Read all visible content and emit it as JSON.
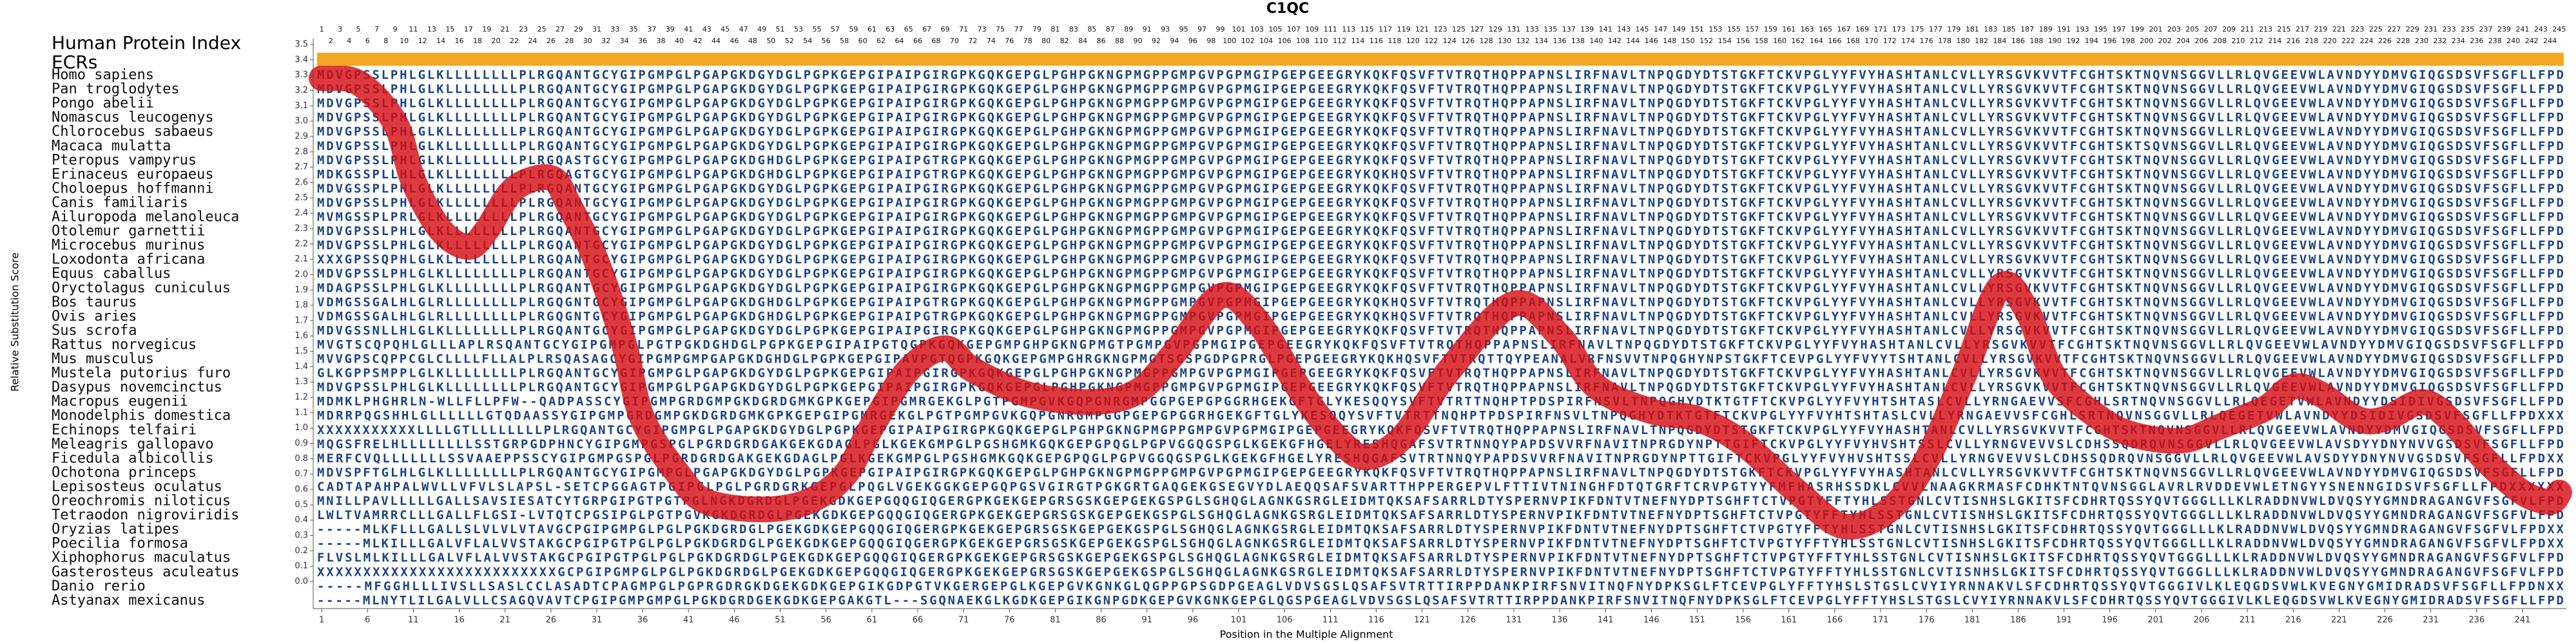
{
  "chart_data": {
    "type": "line",
    "title": "C1QC",
    "ylabel": "Relative Substitution Score",
    "xlabel": "Position in the Multiple Alignment",
    "xlim": [
      0.5,
      245.5
    ],
    "ylim": [
      0,
      3.5
    ],
    "xticks": [
      1,
      6,
      11,
      16,
      21,
      26,
      31,
      36,
      41,
      46,
      51,
      56,
      61,
      66,
      71,
      76,
      81,
      86,
      91,
      96,
      101,
      106,
      111,
      116,
      121,
      126,
      131,
      136,
      141,
      146,
      151,
      156,
      161,
      166,
      171,
      176,
      181,
      186,
      191,
      196,
      201,
      206,
      211,
      216,
      221,
      226,
      231,
      236,
      241
    ],
    "yticks": [
      {
        "value": 0,
        "label": "0.0"
      },
      0.1,
      0.2,
      0.3,
      0.4,
      0.5,
      0.6,
      0.7,
      0.8,
      0.9,
      {
        "value": 1,
        "label": "1.0"
      },
      1.1,
      1.2,
      1.3,
      1.4,
      1.5,
      1.6,
      1.7,
      1.8,
      1.9,
      {
        "value": 2,
        "label": "2.0"
      },
      2.1,
      2.2,
      2.3,
      2.4,
      2.5,
      2.6,
      2.7,
      2.8,
      2.9,
      {
        "value": 3,
        "label": "3.0"
      },
      3.1,
      3.2,
      3.3,
      3.4,
      3.5
    ],
    "x": [
      1,
      5,
      9,
      11,
      14,
      17,
      19,
      22,
      26,
      28,
      31,
      34,
      36,
      40,
      43,
      49,
      54,
      58,
      61,
      65,
      69,
      72,
      78,
      85,
      90,
      94,
      99,
      103,
      108,
      112,
      115,
      119,
      124,
      131,
      136,
      140,
      146,
      151,
      156,
      162,
      167,
      172,
      176,
      180,
      184,
      187,
      190,
      195,
      199,
      204,
      208,
      213,
      216,
      219,
      223,
      226,
      230,
      233,
      237,
      241,
      244,
      245
    ],
    "series": [
      {
        "color": "#d40f14",
        "values": [
          3.28,
          3.25,
          2.99,
          2.61,
          2.29,
          2.18,
          2.29,
          2.56,
          2.63,
          2.45,
          2.08,
          1.54,
          1.06,
          0.69,
          0.52,
          0.47,
          0.52,
          0.69,
          1.01,
          1.38,
          1.52,
          1.38,
          1.22,
          1.17,
          1.24,
          1.49,
          1.86,
          1.7,
          1.22,
          0.92,
          0.81,
          0.95,
          1.38,
          1.81,
          1.6,
          1.27,
          1.11,
          1.06,
          0.9,
          0.58,
          0.36,
          0.47,
          0.79,
          1.33,
          1.92,
          1.76,
          1.33,
          1.06,
          0.95,
          0.92,
          1.01,
          1.13,
          1.27,
          1.22,
          1.06,
          1.06,
          1.17,
          1.06,
          0.79,
          0.58,
          0.52,
          0.58
        ]
      }
    ]
  },
  "human_protein_index": {
    "label": "Human Protein Index",
    "positions": [
      1,
      2,
      3,
      4,
      5,
      6,
      7,
      8,
      9,
      10,
      11,
      12,
      13,
      14,
      15,
      16,
      17,
      18,
      19,
      20,
      21,
      22,
      23,
      24,
      25,
      26,
      27,
      28,
      29,
      30,
      31,
      32,
      33,
      34,
      35,
      36,
      37,
      38,
      39,
      40,
      41,
      42,
      43,
      44,
      45,
      46,
      47,
      48,
      49,
      50,
      51,
      52,
      53,
      54,
      55,
      56,
      57,
      58,
      59,
      60,
      61,
      62,
      63,
      64,
      65,
      66,
      67,
      68,
      69,
      70,
      71,
      72,
      73,
      74,
      75,
      76,
      77,
      78,
      79,
      80,
      81,
      82,
      83,
      84,
      85,
      86,
      87,
      88,
      89,
      90,
      91,
      92,
      93,
      94,
      95,
      96,
      97,
      98,
      99,
      100,
      101,
      102,
      103,
      104,
      105,
      106,
      107,
      108,
      109,
      110,
      111,
      112,
      113,
      114,
      115,
      116,
      117,
      118,
      119,
      120,
      121,
      122,
      123,
      124,
      125,
      126,
      127,
      128,
      129,
      130,
      131,
      132,
      133,
      134,
      135,
      136,
      137,
      138,
      139,
      140,
      141,
      142,
      143,
      144,
      145,
      146,
      147,
      148,
      149,
      150,
      151,
      152,
      153,
      154,
      155,
      156,
      157,
      158,
      159,
      160,
      161,
      162,
      163,
      164,
      165,
      166,
      167,
      168,
      169,
      170,
      171,
      172,
      173,
      174,
      175,
      176,
      177,
      178,
      179,
      180,
      181,
      182,
      183,
      184,
      185,
      186,
      187,
      188,
      189,
      190,
      191,
      192,
      193,
      194,
      195,
      196,
      197,
      198,
      199,
      200,
      201,
      202,
      203,
      204,
      205,
      206,
      207,
      208,
      209,
      210,
      211,
      212,
      213,
      214,
      215,
      216,
      217,
      218,
      219,
      220,
      221,
      222,
      223,
      224,
      225,
      226,
      227,
      228,
      229,
      230,
      231,
      232,
      233,
      234,
      235,
      236,
      237,
      238,
      239,
      240,
      241,
      242,
      243,
      244,
      245
    ]
  },
  "ecrs": {
    "label": "ECRs",
    "color": "#f5a623",
    "ranges": [
      [
        1,
        245
      ]
    ]
  },
  "alignment": [
    {
      "species": "Homo sapiens",
      "sequence": "MDVGPSSLPHLGLKLLLLLLLLPLRGQANTGCYGIPGMPGLPGAPGKDGYDGLPGPKGEPGIPAIPGIRGPKGQKGEPGLPGHPGKNGPMGPPGMPGVPGPMGIPGEPGEEGRYKQKFQSVFTVTRQTHQPPAPNSLIRFNAVLTNPQGDYDTSTGKFTCKVPGLYYFVYHASHTANLCVLLYRSGVKVVTFCGHTSKTNQVNSGGVLLRLQVGEEVWLAVNDYYDMVGIQGSDSVFSGFLLFPD"
    },
    {
      "species": "Pan troglodytes",
      "sequence": "MDVGPSSLPHLGLKLLLLLLLLPLRGQANTGCYGIPGMPGLPGAPGKDGYDGLPGPKGEPGIPAIPGIRGPKGQKGEPGLPGHPGKNGPMGPPGMPGVPGPMGIPGEPGEEGRYKQKFQSVFTVTRQTHQPPAPNSLIRFNAVLTNPQGDYDTSTGKFTCKVPGLYYFVYHASHTANLCVLLYRSGVKVVTFCGHTSKTNQVNSGGVLLRLQVGEEVWLAVNDYYDMVGIQGSDSVFSGFLLFPD"
    },
    {
      "species": "Pongo abelii",
      "sequence": "MDVGPSSLPHLGLKLLLLLLLLPLRGQANTGCYGIPGMPGLPGAPGKDGYDGLPGPKGEPGIPAIPGIRGPKGQKGEPGLPGHPGKNGPMGPPGMPGVPGPMGIPGEPGEEGRYKQKFQSVFTVTRQTHQPPAPNSLIRFNAVLTNPQGDYDTSTGKFTCKVPGLYYFVYHASHTANLCVLLYRSGVKVVTFCGHTSKTNQVNSGGVLLRLQVGEEVWLAVNDYYDMVGIQGSDSVFSGFLLFPD"
    },
    {
      "species": "Nomascus leucogenys",
      "sequence": "MDVGPSSLPHLGLKLLLLLLLLPLRGQANTGCYGIPGMPGLPGAPGKDGYDGLPGPKGEPGIPAIPGIRGPKGQKGEPGLPGHPGKNGPMGPPGMPGVPGPMGIPGEPGEEGRYKQKFQSVFTVTRQTHQPPAPNSLIRFNAVLTNPQGDYDTSTGKFTCKVPGLYYFVYHASHTANLCVLLYRSGVKVVTFCGHTSKTNQVNSGGVLLRLQVGEEVWLAVNDYYDMVGIQGSDSVFSGFLLFPD"
    },
    {
      "species": "Chlorocebus sabaeus",
      "sequence": "MDVGPSSLPHLGLKLLLLLLLLPLRGQANTGCYGIPGMPGLPGAPGKDGYDGLPGPKGEPGIPAIPGIRGPKGQKGEPGLPGHPGKNGPMGPPGMPGVPGPMGIPGEPGEEGRYKQKFQSVFTVTRQTHQPPAPNSLIRFNAVLTNPQGDYDTSTGKFTCKVPGLYYFVYHASHTANLCVLLYRSGVKVVTFCGHTSKTNQVNSGGVLLRLQVGEEVWLAVNDYYDMVGIQGSDSVFSGFLLFPD"
    },
    {
      "species": "Macaca mulatta",
      "sequence": "MDVGPSSLPHLGLKLLLLLLLLPLRGQANTGCYGIPGMPGLPGAPGKDGYDGLPGPKGEPGIPAIPGIRGPKGQKGEPGLPGHPGKNGPMGPPGMPGVPGPMGIPGEPGEEGRYKQKFQSVFTVTRQTHQPPAPNSLIRFNAVLTNPQGDYDTSTGKFTCKVPGLYYFVYHASHTANLCVLLYRSGVKVVTFCGHTSKTSQVNSGGVLLRLQVGEEVWLAVNDYYDMVGIQGSDSVFSGFLLFPD"
    },
    {
      "species": "Pteropus vampyrus",
      "sequence": "MDVGPSSLPHLGLKLLLLLLLLPLRGQASTGCYGIPGMPGLPGAPGKDGHDGLPGPKGEPGIPAIPGTRGPKGQKGEPGLPGHPGKNGPMGPPGMPGVPGPMGIPGEPGEEGRYKQKFQSVFTVTRQTHQPPAPNSLIRFNAVLTNPQGDYDTSTGKFTCKVPGLYYFVYHASHTANLCVLLYRSGVKVVTFCGHTSKTNQVNSGGVLLRLQVGEEVWLAVNDYYDMVGIQGSDSVFSGFLLFPD"
    },
    {
      "species": "Erinaceus europaeus",
      "sequence": "MDKGSSPLLHLGLKLLLLLLLLPLRGQAGTGCYGIPGMPGLPGAPGKDGHDGLPGPKGEPGIPAIPGTRGPKGQKGEPGLPGHPGKNGPMGPPGMPGVPGPMGIPGEPGEEGRYKQKHQSVFTVTRQTHQPPAPNSLIRFNAVLTNPQGDYDTSTGKFTCKVPGLYYFVYHASHTANLCVLLYRSGVKVVTFCGHTSKTNQVNSGGVLLRLQVGEEVWLAVNDYYDMVGIQGSDSVFSGFLLFPD"
    },
    {
      "species": "Choloepus hoffmanni",
      "sequence": "MDVGSSPLPHLGLKLLLLLLLLPLRGQANTGCYGIPGMPGLPGAPGKDGYDGLPGPKGEPGIPAIPGIRGPKGQKGEPGLPGHPGKNGPMGPPGMPGVPGPMGIPGEPGEEGRYKQKFQSVFTVTRQTHQPPAPNSLIRFNAVLTNPQGDYDTSTGKFTCKVPGLYYFVYHASHTANLCVLLYRSGVKVVTFCGHTSKTNQVNSGGVLLRLQVGEEVWLAVNDYYDMVGIQGSDSVFSGFLLFPD"
    },
    {
      "species": "Canis familiaris",
      "sequence": "MDVGPSSLPHLGLKLLLLLLLLPLRGQANTGCYGIPGMPGLPGAPGKDGYDGLPGPKGEPGIPAIPGIRGPKGQKGEPGLPGHPGKNGPMGPPGMPGVPGPMGIPGEPGEEGRYKQKFQSVFTVTRQTHQPPAPNSLIRFNAVLTNPQGDYDTSTGKFTCKVPGLYYFVYHASHTANLCVLLYRSGVKVVTFCGHTSKTNQVNSGGVLLRLQVGEEVWLAVNDYYDMVGIQGSDSVFSGFLLFPD"
    },
    {
      "species": "Ailuropoda melanoleuca",
      "sequence": "MVMGSSPLPRLGLKLLLLLLLLPLRGQANTGCYGIPGMPGLPGAPGKDGYDGLPGPKGEPGIPAIPGIRGPKGQKGEPGLPGHPGKNGPMGPPGMPGVPGPMGIPGEPGEEGRYKQKFQSVFTVTRQTHQPPAPNSLIRFNAVLTNPQGDYDTSTGKFTCKVPGLYYFVYHASHTANLCVLLYRSGVKVVTFCGHTSKTNQVNSGGVLLRLQVGEEVWLAVNDYYDMVGIQGSDSVFSGFLLFPD"
    },
    {
      "species": "Otolemur garnettii",
      "sequence": "MDVGPSSLPHLGLKLLLLLLLLPLRGQANTGCYGIPGMPGLPGAPGKDGYDGLPGPKGEPGIPAIPGIRGPKGQKGEPGLPGHPGKNGPMGPPGMPGVPGPMGIPGEPGEEGRYKQKFQSVFTVTRQTHQPPAPNSLIRFNAVLTNPQGDYDTSTGKFTCKVPGLYYFVYHASHTANLCVLLYRSGVKVVTFCGHTSKTNQVNSGGVLLRLQVGEEVWLAVNDYYDMVGIQGSDSVFSGFLLFPD"
    },
    {
      "species": "Microcebus murinus",
      "sequence": "MDVGPSSLPHLGLKLLLLLLLLPLRGQANTGCYGIPGMPGLPGAPGKDGYDGLPGPKGEPGIPAIPGIRGPKGQKGEPGLPGHPGKNGPMGPPGMPGVPGPMGIPGEPGEEGRYKQKFQSVFTVTRQTHQPPAPNSLIRFNAVLTNPQGDYDTSTGKFTCKVPGLYYFVYHASHTANLCVLLYRSGVKVVTFCGHTSKTNQVNSGGVLLRLQVGEEVWLAVNDYYDMVGIQGSDSVFSGFLLFPD"
    },
    {
      "species": "Loxodonta africana",
      "sequence": "XXXGPSSQPHLGLKLLLLLLLLPLRGQANTGCYGIPGMPGLPGAPGKDGYDGLPGPKGEPGIPAIPGIRGPKGQKGEPGLPGHPGKNGPMGPPGMPGVPGPMGIPGEPGEEGRYKQKFQSVFTVTRQTHQPPAPNSLIRFNAVLTNPQGDYDTSTGKFTCKVPGLYYFVYHASHTANLCVLLYRSGVKVVTFCGHTSKTNQVNSGGVLLRLQVGEEVWLAVNDYYDMVGIQGSDSVFSGFLLFPD"
    },
    {
      "species": "Equus caballus",
      "sequence": "MDVGPSSLPHLGLKLLLLLLLLPLRGQANTGCYGIPGMPGLPGAPGKDGYDGLPGPKGEPGIPAIPGIRGPKGQKGEPGLPGHPGKNGPMGPPGMPGVPGPMGIPGEPGEEGRYKQKFQSVFTVTRQTHQPPAPNSLIRFNAVLTNPQGDYDTSTGKFTCKVPGLYYFVYHASHTANLCVLLYRSGVKVVTFCGHTSKTNQVNSGGVLLRLQVGEEVWLAVNDYYDMVGIQGSDSVFSGFLLFPD"
    },
    {
      "species": "Oryctolagus cuniculus",
      "sequence": "MDAGPSSLPHLGLKLLLLLLLLPLRGQANTGCYGIPGMPGLPGAPGKDGYDGLPGPKGEPGIPAIPGIRGPKGQKGEPGLPGHPGKNGPMGPPGMPGVPGPMGIPGEPGEEGRYKQKFQSVFTVTRQTHQPPAPNSLIRFNAVLTNPQGDYDTSTGKFTCKVPGLYYFVYHASHTANLCVLLYRSGVKVVTFCGHTSKTNQVNSGGVLLRLQVGEEVWLAVNDYYDMVGIQGSDSVFSGFLLFPD"
    },
    {
      "species": "Bos taurus",
      "sequence": "VDMGSSGALHLGLRLLLLLLLLPLRGQGNTGCYGIPGMPGLPGAPGKDGHDGLPGPKGEPGIPAIPGTRGPKGQKGEPGLPGHPGKNGPMGPPGMPGVPGPMGIPGEPGEEGRYKQKHQSVFTVTRQTHQPPAPNSLIRFNAVLTNPQGDYDTSTGKFTCKVPGLYYFVYHASHTANLCVLLYRSGVKVVTFCGHTSKTNQVNSGGVLLRLQVGEEVWLAVNDYYDMVGIQGSDSVFSGFLLFPD"
    },
    {
      "species": "Ovis aries",
      "sequence": "VDMGSSGALHLGLRLLLLLLLLPLRGQGNTGCYGIPGMPGLPGAPGKDGHDGLPGPKGEPGIPAIPGTRGPKGQKGEPGLPGHPGKNGPMGPPGMPGVPGPMGIPGEPGEEGRYKQKHQSVFTVTRQTHQPPAPNSLIRFNAVLTNPQGDYDTSTGKFTCKVPGLYYFVYHASHTANLCVLLYRSGVKVVTFCGHTSKTNQVNSGGVLLRLQVGEEVWLAVNDYYDMVGIQGSDSVFSGFLLFPD"
    },
    {
      "species": "Sus scrofa",
      "sequence": "MDVGSSNLLHLGLKLLLLLLLLPLRGQANTGCYGIPGMPGLPGAPGKDGYDGLPGPKGEPGIPAIPGIRGPKGQKGEPGLPGHPGKNGPMGPPGMPGVPGPMGIPGEPGEEGRYKQKFQSVFTVTRQTHQPPAPNSLIRFNAVLTNPQGDYDTSTGKFTCKVPGLYYFVYHASHTANLCVLLYRSGVKVVTFCGHTSKTNQVNSGGVLLRLQVGEEVWLAVNDYYDMVGIQGSDSVFSGFLLFPD"
    },
    {
      "species": "Rattus norvegicus",
      "sequence": "MVGTSCQPQHLGLLLAPLRSQANTGCYGIPGMPGLPGTPGKDGHDGLPGPKGEPGIPAIPGTQGPKGQKGEPGMPGHPGKNGPMGTPGMPGVPGPMGIPGEPGEEGRYKQKFQSVFTVTRQTHQPPAPNSLIRFNAVLTNPQGDYDTSTGKFTCKVPGLYYFVYHASHTANLCVLLYRSGVKVVTFCGHTSKTNQVNSGGVLLRLQVGEEVWLAVNDYYDMVGIQGSDSVFSGFLLFPD"
    },
    {
      "species": "Mus musculus",
      "sequence": "MVVGPSCQPPCGLCLLLLFLLALPLRSQASAGCYGIPGMPGMPGAPGKDGHDGLPGPKGEPGIPAVPGTQGPKGQKGEPGMPGHRGKNGPMGTSGSPGDPGPRGLPGEPGEEGRYKQKHQSVFTVTRQTTQYPEANALVRFNSVVTNPQGHYNPSTGKFTCEVPGLYYFVYYTSHTANLCVLLYRSGVKVVTFCGHTSKTNQVNSGGVLLRLQVGEEVWLAVNDYYDMVGIQGSDSVFSGFLLFPD"
    },
    {
      "species": "Mustela putorius furo",
      "sequence": "GLKGPPSMPPLGLKLLLLLLLLPLRGQANTGCYGIPGMPGLPGAPGKDGYDGLPGPKGEPGIPAIPGIRGPKGQKGEPGLPGHPGKNGPMGPPGMPGVPGPMGIPGEPGEEGRYKQKFQSVFTVTRQTHQPPAPNSLIRFNAVLTNPQGDYDTSTGKFTCKVPGLYYFVYHASHTANLCVLLYRSGVKVVTFCGHTSKTNQVNSGGVLLRLQVGEEVWLAVNDYYDMVGIQGSDSVFSGFLLFPD"
    },
    {
      "species": "Dasypus novemcinctus",
      "sequence": "MDVGPSSLPHLGLKLLLLLLLLPLRGQANTGCYGIPGMPGLPGAPGKDGYDGLPGPKGEPGIPAIPGIRGPKGQKGEPGLPGHPGKNGPMGPPGMPGVPGPMGIPGEPGEEGRYKQKFQSVFTVTRQTHQPPAPNSLIRFNAVLTNPQGDYDTSTGKFTCKVPGLYYFVYHASHTANLCVLLYRSGVKVVTFCGHTSKTNQVNSGGVLLRLQVGEEVWLAVNDYYDMVGIQGSDSVFSGFLLFPD"
    },
    {
      "species": "Macropus eugenii",
      "sequence": "MDMKLPHGHRLN-WLLFLLPFW--QADPASSCYGIPGMPGRDGMPGKDGRDGMKGPKGEPGIPGMRGEKGLPGTPGMPGVKGQPGNRGMPGGPGEPGPGGRHGEKGFTGLYKESQQYSVFTVTRTTNQHPTPDSPIRFNSVLTNPQGHYDTKTGTFTCKVPGLYYFVYHTSHTASLCVLLYRNGAEVVSFCGHLSRTNQVNSGGVLLRLQEGETVWLAVNDYYDSIDIVGSDSVFSGFLLFPD"
    },
    {
      "species": "Monodelphis domestica",
      "sequence": "MDRRPQGSHHLGLLLLLLGTQDAASSYGIPGMPGRDGMPGKDGRDGMKGPKGEPGIPGMRGEKGLPGTPGMPGVKGQPGNRGMPGGPGEPGPGGRHGEKGFTGLYKESQQYSVFTVTRTTNQHPTPDSPIRFNSVLTNPQGHYDTKTGTFTCKVPGLYYFVYHTSHTASLCVLLYRNGAEVVSFCGHLSRTNQVNSGGVLLRLQEGETVWLAVNDYYDSIDIVGSDSVFSGFLLFPDXXX"
    },
    {
      "species": "Echinops telfairi",
      "sequence": "XXXXXXXXXXXLLLLGTLLLLLLLLPLRGQANTGCYGIPGMPGLPGAPGKDGYDGLPGPKGEPGIPAIPGIRGPKGQKGEPGLPGHPGKNGPMGPPGMPGVPGPMGIPGEPGEEGRYKQKFQSVFTVTRQTHQPPAPNSLIRFNAVLTNPQGDYDTSTGKFTCKVPGLYYFVYHASHTANLCVLLYRSGVKVVTFCGHTSKTNQVNSGGVLLRLQVGEEVWLAVNDYYDMVGIQGSDSVFSGFLLFPD"
    },
    {
      "species": "Meleagris gallopavo",
      "sequence": "MQGSFRELHLLLLLLLLSSTGRPGDPHNCYGIPGMPGSPGLPGRDGRDGAKGEKGDAGLPGLKGEKGMPGLPGSHGMKGQKGEPGPQGLPGPVGGQGSPGLKGEKGFHGELYRESHQGAFSVTRTNNQYPAPDSVVRFNAVITNPRGDYNPTTGIFTCKVPGLYYFVYHVSHTSSLCVLLYRNGVEVVSLCDHSSQDRQVNSGGVLLRLQVGEEVWLAVSDYYDNYNVVGSDSVFSGFLLFPD"
    },
    {
      "species": "Ficedula albicollis",
      "sequence": "MERFCVQLLLLLLLSSVAAEPPSSCYGIPGMPGSPGLPGRDGRDGAKGEKGDAGLPGLKGEKGMPGLPGSHGMKGQKGEPGPQGLPGPVGGQGSPGLKGEKGFHGELYRESHQGAFSVTRTNNQYPAPDSVVRFNAVITNPRGDYNPTTGIFTCKVPGLYYFVYHVSHTSSLCVLLYRNGVEVVSLCDHSSQDRQVNSGGVLLRLQVGEEVWLAVSDYYDNYNVVGSDSVFSGFLLFPDXX"
    },
    {
      "species": "Ochotona princeps",
      "sequence": "MDVSPFTGLHLGLKLLLLLLLLPLRGQANTGCYGIPGMPGLPGAPGKDGYDGLPGPKGEPGIPAIPGIRGPKGQKGEPGLPGHPGKNGPMGPPGMPGVPGPMGIPGEPGEEGRYKQKFQSVFTVTRQTHQPPAPNSLIRFNAVLTNPQGDYDTSTGKFTCKVPGLYYFVYHASHTANLCVLLYRSGVKVVTFCGHTSKTNQVNSGGVLLRLQVGEEVWLAVNDYYDMVGIQGSDSVFSGFLLFPD"
    },
    {
      "species": "Lepisosteus oculatus",
      "sequence": "CADTAPAHPALWVLLVFVLSLAPSL-SETCPGGAGTPGIPGLPGLPGRDGRKGEPGLPQGLVGEKGGKGEPGQPGSVGIRGTPGKGRTGAQGEKGSEGVYDLAEQQSAFSVARTTHPPERGEPVLFTTIVTNINGHFDTQTGRFTCRVPGTYYFMFHASRHSSDKLCVVLNAAGKRMASFCDHKTNTQVNSGGLAVRLRVDDEVWLETNGYYSNENNGIDSVFSGFLLFPDXXXXXX"
    },
    {
      "species": "Oreochromis niloticus",
      "sequence": "MNILLPAVLLLLLGALLSAVSIESATCYTGRPGIPGTPGTPGLNGKDGRDGLPGEKGDKGEPGQQGIQGERGPKGEKGEPGRSGSKGEPGEKGSPGLSGHQGLAGNKGSRGLEIDMTQKSAFSARRLDTYSPERNVPIKFDNTVTNEFNYDPTSGHFTCTVPGTYFFTYHLSSTGNLCVTISNHSLGKITSFCDHRTQSSYQVTGGGLLLKLRADDNVWLDVQSYYGMNDRAGANGVFSGFVLFPD"
    },
    {
      "species": "Tetraodon nigroviridis",
      "sequence": "LWLTVAMRRCLLLGALLFLGSI-LVTQTCPGSIPGLPGTPGVKGKDGRDGLPGEKGDKGEPGQQGIQGERGPKGEKGEPGRSGSKGEPGEKGSPGLSGHQGLAGNKGSRGLEIDMTQKSAFSARRLDTYSPERNVPIKFDNTVTNEFNYDPTSGHFTCTVPGTYFFTYHLSSTGNLCVTISNHSLGKITSFCDHRTQSSYQVTGGGLLLKLRADDNVWLDVQSYYGMNDRAGANGVFSGFVLFPD"
    },
    {
      "species": "Oryzias latipes",
      "sequence": "-----MLKFLLLGALLSLVLVLVTAVGCPGIPGMPGLPGLPGKDGRDGLPGEKGDKGEPGQQGIQGERGPKGEKGEPGRSGSKGEPGEKGSPGLSGHQGLAGNKGSRGLEIDMTQKSAFSARRLDTYSPERNVPIKFDNTVTNEFNYDPTSGHFTCTVPGTYFFTYHLSSTGNLCVTISNHSLGKITSFCDHRTQSSYQVTGGGLLLKLRADDNVWLDVQSYYGMNDRAGANGVFSGFVLFPDXX"
    },
    {
      "species": "Poecilia formosa",
      "sequence": "-----MLKILLLGALVFLALVVSTAKGCPGIPGTPGLPGLPGKDGRDGLPGEKGDKGEPGQQGIQGERGPKGEKGEPGRSGSKGEPGEKGSPGLSGHQGLAGNKGSRGLEIDMTQKSAFSARRLDTYSPERNVPIKFDNTVTNEFNYDPTSGHFTCTVPGTYFFTYHLSSTGNLCVTISNHSLGKITSFCDHRTQSSYQVTGGGLLLKLRADDNVWLDVQSYYGMNDRAGANGVFSGFVLFPDXX"
    },
    {
      "species": "Xiphophorus maculatus",
      "sequence": "FLVSLMLKILLLGALVFLALVVSTAKGCPGIPGTPGLPGLPGKDGRDGLPGEKGDKGEPGQQGIQGERGPKGEKGEPGRSGSKGEPGEKGSPGLSGHQGLAGNKGSRGLEIDMTQKSAFSARRLDTYSPERNVPIKFDNTVTNEFNYDPTSGHFTCTVPGTYFFTYHLSSTGNLCVTISNHSLGKITSFCDHRTQSSYQVTGGGLLLKLRADDNVWLDVQSYYGMNDRAGANGVFSGFVLFPD"
    },
    {
      "species": "Gasterosteus aculeatus",
      "sequence": "XXXXXXXXXXXXXXXXXXXXXXXXXXGCPGIPGMPGLPGLPGKDGRDGLPGEKGDKGEPGQQGIQGERGPKGEKGEPGRSGSKGEPGEKGSPGLSGHQGLAGNKGSRGLEIDMTQKSAFSARRLDTYSPERNVPIKFDNTVTNEFNYDPTSGHFTCTVPGTYFFTYHLSSTGNLCVTISNHSLGKITSFCDHRTQSSYQVTGGGLLLKLRADDNVWLDVQSYYGMNDRAGANGVFSGFVLFPD"
    },
    {
      "species": "Danio rerio",
      "sequence": "-----MFGGHLLLIVSLLSASLCCLASADTCPAGMPGLPGPRGDRGKDGEKGDKGEPGIKGDPGTVKGERGEPGLKGEPGVKGNKGLQGPPGPSGDPGEAGLVDVSGSLQSAFSVTRTTIRPPDANKPIRFSNVITNQFNYDPKSGLFTCEVPGLYFFTYHSLSTGSLCVYIYRNNAKVLSFCDHRTQSSYQVTGGGIVLKLEQGDSVWLKVEGNYGMIDRADSVFSGFLLFPDNXX"
    },
    {
      "species": "Astyanax mexicanus",
      "sequence": "-----MLNYTLILGALVLLCSAGQVAVTCPGIPGMPGMPGLPGKDGRDGEKGDKGEPGAKGTL---SGQNAEKGLKGDKGEPGIKGNPGDKGEPGVKGNKGEPGLQGSPGEAGLVDVSGSLQSAFSVTRTTIRPPDANKPIRFSNVITNQFNYDPKSGLFTCEVPGLYFFTYHSLSTGSLCVYIYRNNAKVLSFCDHRTQSSYQVTGGGIVLKLEQGDSVWLKVEGNYGMIDRADSVFSGFLLFPD"
    }
  ]
}
